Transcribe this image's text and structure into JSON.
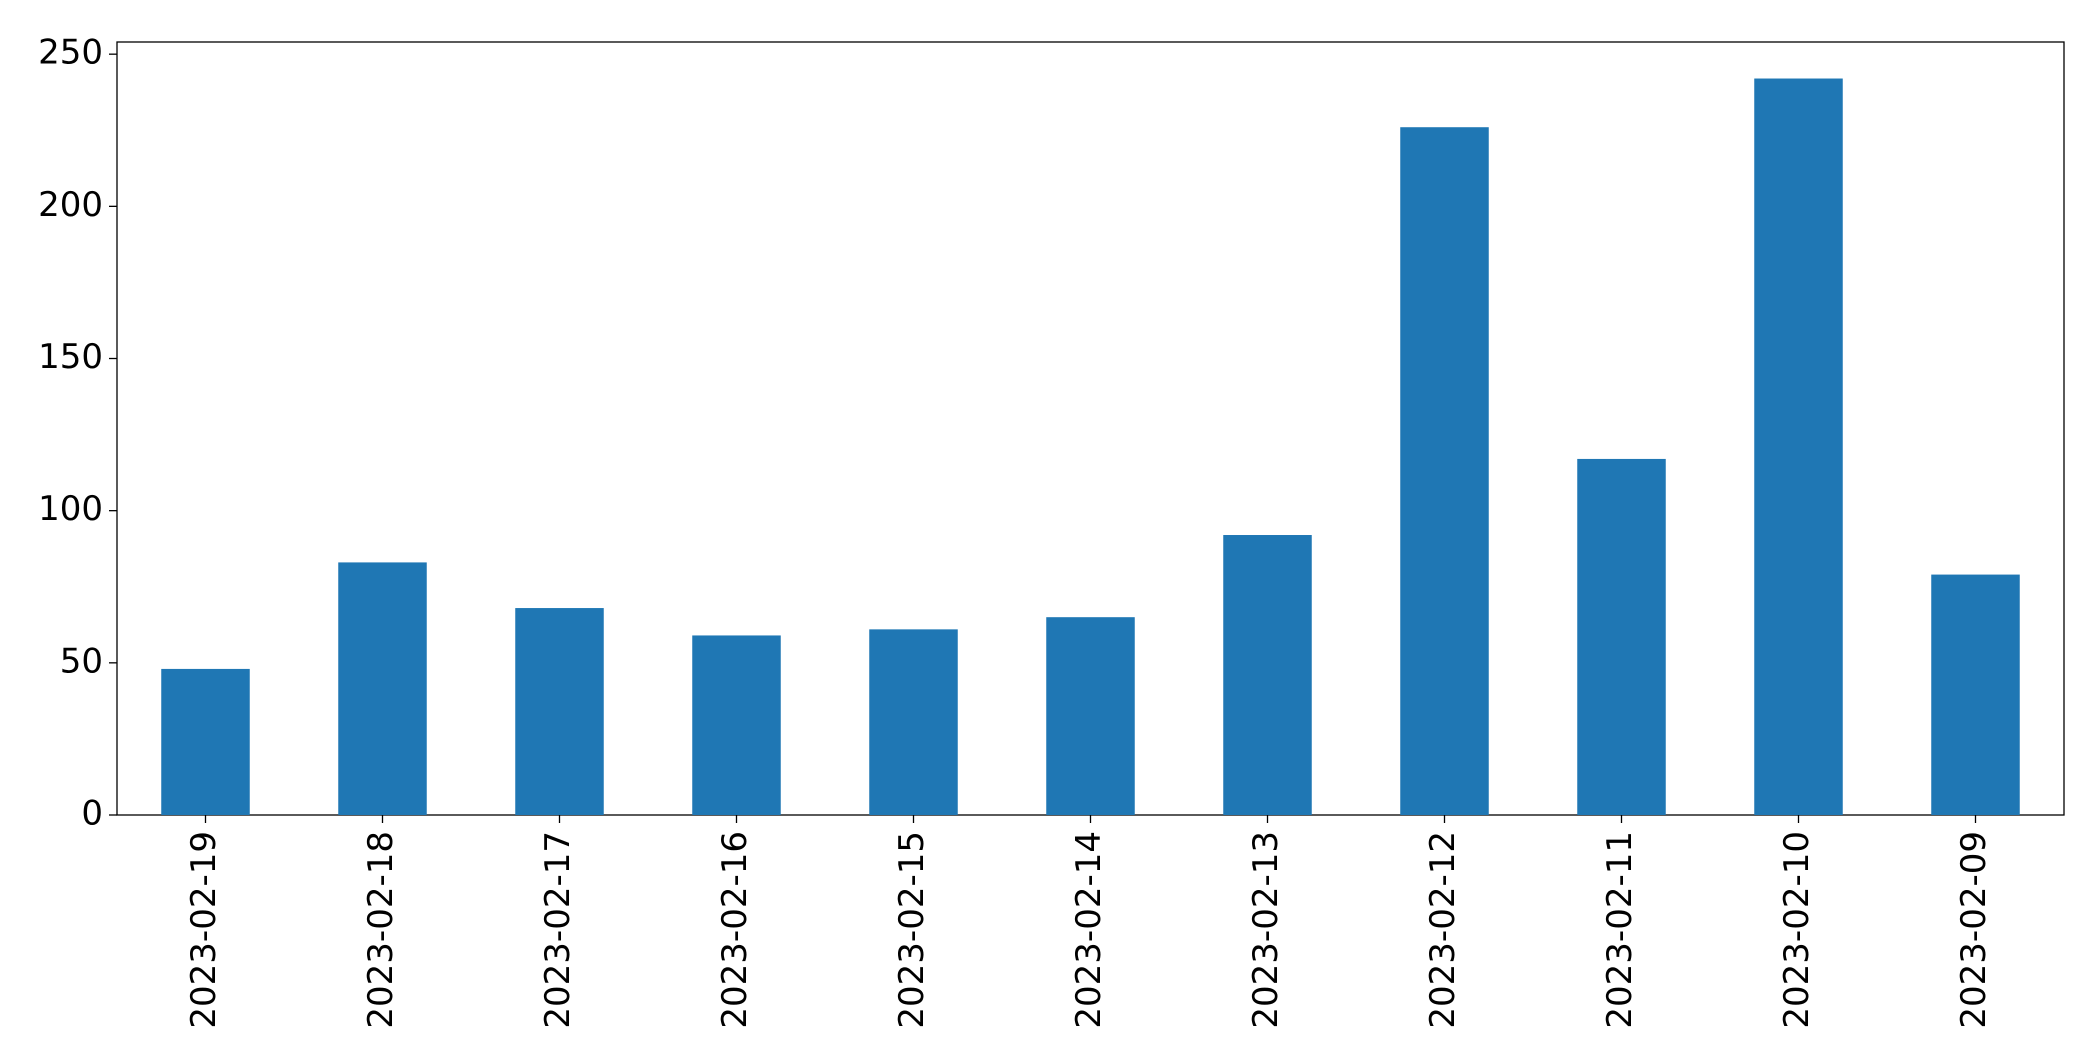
{
  "chart_data": {
    "type": "bar",
    "categories": [
      "2023-02-19",
      "2023-02-18",
      "2023-02-17",
      "2023-02-16",
      "2023-02-15",
      "2023-02-14",
      "2023-02-13",
      "2023-02-12",
      "2023-02-11",
      "2023-02-10",
      "2023-02-09"
    ],
    "values": [
      48,
      83,
      68,
      59,
      61,
      65,
      92,
      226,
      117,
      242,
      79
    ],
    "color": "#1f77b4",
    "ylim": [
      0,
      254
    ],
    "yticks": [
      0,
      50,
      100,
      150,
      200,
      250
    ],
    "grid": false
  }
}
